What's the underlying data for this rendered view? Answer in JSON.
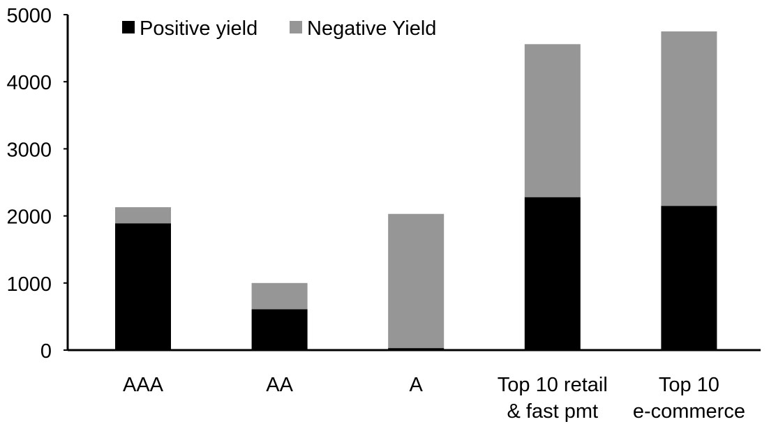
{
  "chart_data": {
    "type": "bar",
    "stacked": true,
    "title": "",
    "xlabel": "",
    "ylabel": "",
    "ylim": [
      0,
      5000
    ],
    "yticks": [
      0,
      1000,
      2000,
      3000,
      4000,
      5000
    ],
    "grid": false,
    "legend_position": "top-left",
    "categories": [
      [
        "AAA"
      ],
      [
        "AA"
      ],
      [
        "A"
      ],
      [
        "Top 10 retail",
        "& fast pmt"
      ],
      [
        "Top 10",
        "e-commerce"
      ]
    ],
    "series": [
      {
        "name": "Positive yield",
        "color": "#000000",
        "values": [
          1890,
          610,
          30,
          2280,
          2150
        ]
      },
      {
        "name": "Negative Yield",
        "color": "#969696",
        "values": [
          240,
          390,
          2000,
          2280,
          2600
        ]
      }
    ]
  }
}
